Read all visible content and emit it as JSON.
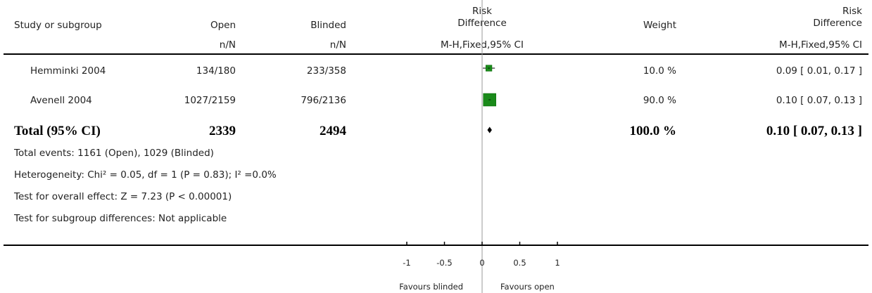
{
  "header": {
    "study": "Study or subgroup",
    "group1": "Open",
    "group2": "Blinded",
    "effect_top": "Risk",
    "effect_bottom": "Difference",
    "weight": "Weight",
    "result_top": "Risk",
    "result_bottom": "Difference",
    "group1_sub": "n/N",
    "group2_sub": "n/N",
    "method": "M-H,Fixed,95% CI",
    "result_method": "M-H,Fixed,95% CI"
  },
  "studies": [
    {
      "name": "Hemminki 2004",
      "g1": "134/180",
      "g2": "233/358",
      "weight": "10.0 %",
      "result": "0.09 [ 0.01, 0.17 ]"
    },
    {
      "name": "Avenell 2004",
      "g1": "1027/2159",
      "g2": "796/2136",
      "weight": "90.0 %",
      "result": "0.10 [ 0.07, 0.13 ]"
    }
  ],
  "total": {
    "name": "Total (95% CI)",
    "g1": "2339",
    "g2": "2494",
    "weight": "100.0 %",
    "result": "0.10 [ 0.07, 0.13 ]"
  },
  "notes": {
    "events": "Total events: 1161 (Open), 1029 (Blinded)",
    "heterogeneity": "Heterogeneity: Chi² = 0.05, df = 1 (P = 0.83); I² =0.0%",
    "overall": "Test for overall effect: Z = 7.23 (P < 0.00001)",
    "subgroup": "Test for subgroup differences: Not applicable"
  },
  "footer": {
    "favours_left": "Favours blinded",
    "favours_right": "Favours open"
  },
  "colors": {
    "marker": "#1a8a1a",
    "marker_edge": "#006400",
    "axis": "#000000",
    "null_line": "#999999"
  },
  "chart_data": {
    "type": "forest",
    "xlim": [
      -1,
      1
    ],
    "ticks": [
      -1,
      -0.5,
      0,
      0.5,
      1
    ],
    "tick_labels": [
      "-1",
      "-0.5",
      "0",
      "0.5",
      "1"
    ],
    "studies": [
      {
        "name": "Hemminki 2004",
        "estimate": 0.09,
        "ci": [
          0.01,
          0.17
        ],
        "weight": 10.0
      },
      {
        "name": "Avenell 2004",
        "estimate": 0.1,
        "ci": [
          0.07,
          0.13
        ],
        "weight": 90.0
      }
    ],
    "pooled": {
      "estimate": 0.1,
      "ci": [
        0.07,
        0.13
      ]
    }
  }
}
